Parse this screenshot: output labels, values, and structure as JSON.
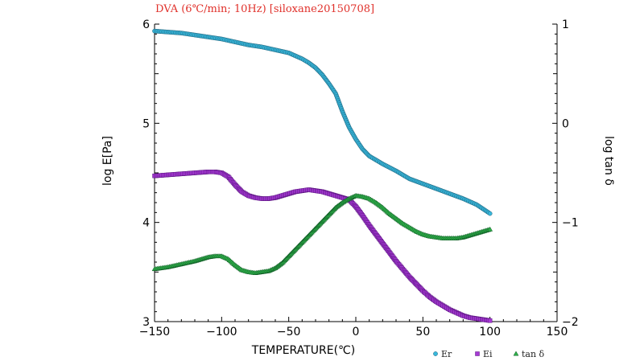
{
  "chart_data": {
    "type": "scatter",
    "title": "DVA (6℃/min; 10Hz) [siloxane20150708]",
    "xlabel": "TEMPERATURE(℃)",
    "ylabel": "log E[Pa]",
    "y2label": "log tan δ",
    "xlim": [
      -150,
      150
    ],
    "ylim": [
      3,
      6
    ],
    "y2lim": [
      -2,
      1
    ],
    "xticks": [
      "−150",
      "−100",
      "−50",
      "0",
      "50",
      "100",
      "150"
    ],
    "yticks": [
      "3",
      "4",
      "5",
      "6"
    ],
    "y2ticks": [
      "−2",
      "−1",
      "0",
      "1"
    ],
    "grid": false,
    "legend_position": "bottom-right",
    "series": [
      {
        "name": "Er",
        "axis": "left",
        "color": "#38b8dc",
        "marker": "circle",
        "x": [
          -150,
          -140,
          -130,
          -120,
          -110,
          -100,
          -90,
          -80,
          -70,
          -60,
          -50,
          -45,
          -40,
          -35,
          -30,
          -25,
          -20,
          -15,
          -10,
          -5,
          0,
          5,
          10,
          20,
          30,
          40,
          50,
          60,
          70,
          80,
          90,
          100
        ],
        "y": [
          5.93,
          5.92,
          5.91,
          5.89,
          5.87,
          5.85,
          5.82,
          5.79,
          5.77,
          5.74,
          5.71,
          5.68,
          5.65,
          5.61,
          5.56,
          5.49,
          5.4,
          5.3,
          5.12,
          4.96,
          4.84,
          4.74,
          4.67,
          4.59,
          4.52,
          4.44,
          4.39,
          4.34,
          4.29,
          4.24,
          4.18,
          4.09
        ]
      },
      {
        "name": "Ei",
        "axis": "left",
        "color": "#a63ad4",
        "marker": "square",
        "x": [
          -150,
          -140,
          -130,
          -120,
          -110,
          -105,
          -100,
          -95,
          -90,
          -85,
          -80,
          -75,
          -70,
          -65,
          -60,
          -55,
          -50,
          -45,
          -40,
          -35,
          -30,
          -25,
          -20,
          -15,
          -10,
          -5,
          0,
          5,
          10,
          15,
          20,
          25,
          30,
          35,
          40,
          45,
          50,
          55,
          60,
          65,
          70,
          75,
          80,
          85,
          90,
          95,
          100
        ],
        "y": [
          4.47,
          4.48,
          4.49,
          4.5,
          4.51,
          4.51,
          4.5,
          4.46,
          4.38,
          4.31,
          4.27,
          4.25,
          4.24,
          4.24,
          4.25,
          4.27,
          4.29,
          4.31,
          4.32,
          4.33,
          4.32,
          4.31,
          4.29,
          4.27,
          4.25,
          4.23,
          4.16,
          4.07,
          3.97,
          3.88,
          3.79,
          3.7,
          3.61,
          3.53,
          3.45,
          3.38,
          3.31,
          3.25,
          3.2,
          3.16,
          3.12,
          3.09,
          3.06,
          3.04,
          3.03,
          3.02,
          3.01
        ]
      },
      {
        "name": "tan δ",
        "axis": "right",
        "color": "#2fb04a",
        "marker": "triangle",
        "x": [
          -150,
          -140,
          -130,
          -120,
          -110,
          -105,
          -100,
          -95,
          -90,
          -85,
          -80,
          -75,
          -70,
          -65,
          -60,
          -55,
          -50,
          -45,
          -40,
          -35,
          -30,
          -25,
          -20,
          -15,
          -10,
          -5,
          0,
          5,
          10,
          15,
          20,
          25,
          30,
          35,
          40,
          45,
          50,
          55,
          60,
          65,
          70,
          75,
          80,
          85,
          90,
          95,
          100
        ],
        "y": [
          -1.47,
          -1.45,
          -1.42,
          -1.39,
          -1.35,
          -1.34,
          -1.34,
          -1.37,
          -1.43,
          -1.48,
          -1.5,
          -1.51,
          -1.5,
          -1.49,
          -1.46,
          -1.41,
          -1.34,
          -1.27,
          -1.2,
          -1.13,
          -1.06,
          -0.99,
          -0.92,
          -0.85,
          -0.8,
          -0.76,
          -0.73,
          -0.74,
          -0.76,
          -0.8,
          -0.85,
          -0.91,
          -0.96,
          -1.01,
          -1.05,
          -1.09,
          -1.12,
          -1.14,
          -1.15,
          -1.16,
          -1.16,
          -1.16,
          -1.15,
          -1.13,
          -1.11,
          -1.09,
          -1.07
        ]
      }
    ]
  }
}
